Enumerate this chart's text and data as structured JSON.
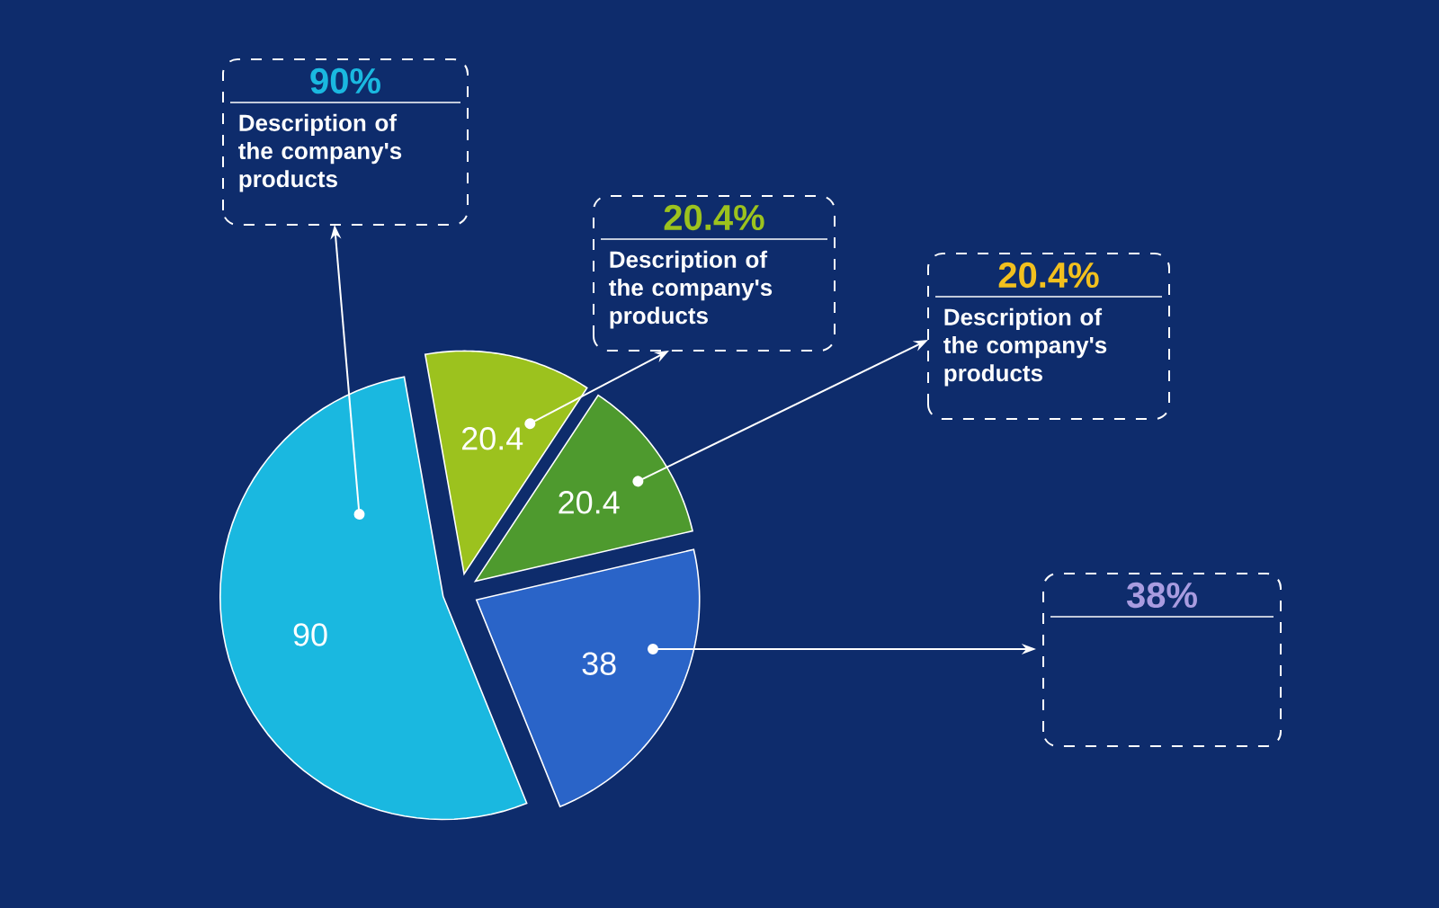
{
  "chart_data": {
    "type": "pie",
    "categories": [
      null,
      null,
      null,
      null
    ],
    "values": [
      90,
      20.4,
      20.4,
      38
    ],
    "colors": [
      "#1ab8e0",
      "#9cc21e",
      "#4e9a2e",
      "#2a64c8"
    ],
    "data_labels": true,
    "annotations": [
      "90%",
      "Description of the company's products",
      "20.4%",
      "Description of the company's products",
      "20.4%",
      "Description of the company's products",
      "38%"
    ]
  }
}
